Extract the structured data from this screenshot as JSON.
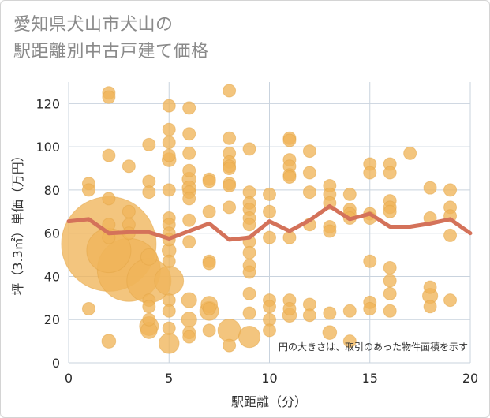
{
  "title": {
    "line1": "愛知県犬山市犬山の",
    "line2": "駅距離別中古戸建て価格"
  },
  "colors": {
    "bubble": "#f0b55a",
    "bubble_stroke": "#e3a645",
    "line": "#d4725a",
    "grid": "#c9d3de",
    "plot_bg": "#ffffff"
  },
  "chart_data": {
    "type": "scatter",
    "xlabel": "駅距離（分）",
    "ylabel": "坪（3.3㎡）単価（万円）",
    "xlim": [
      0,
      20
    ],
    "ylim": [
      0,
      130
    ],
    "x_ticks": [
      0,
      5,
      10,
      15,
      20
    ],
    "y_ticks": [
      0,
      20,
      40,
      60,
      80,
      100,
      120
    ],
    "annotation": "円の大きさは、取引のあった物件面積を示す",
    "bubbles": [
      {
        "x": 1,
        "y": 83,
        "s": 1
      },
      {
        "x": 1,
        "y": 80,
        "s": 1
      },
      {
        "x": 1,
        "y": 25,
        "s": 1
      },
      {
        "x": 2,
        "y": 125,
        "s": 1
      },
      {
        "x": 2,
        "y": 123,
        "s": 1
      },
      {
        "x": 2,
        "y": 96,
        "s": 1
      },
      {
        "x": 2,
        "y": 76,
        "s": 1
      },
      {
        "x": 2,
        "y": 64,
        "s": 1
      },
      {
        "x": 2,
        "y": 58,
        "s": 1
      },
      {
        "x": 2,
        "y": 55,
        "s": 7.5
      },
      {
        "x": 2,
        "y": 52,
        "s": 3.5
      },
      {
        "x": 2,
        "y": 10,
        "s": 1.1
      },
      {
        "x": 3,
        "y": 91,
        "s": 1
      },
      {
        "x": 3,
        "y": 70,
        "s": 1
      },
      {
        "x": 3,
        "y": 64,
        "s": 1
      },
      {
        "x": 3,
        "y": 60,
        "s": 1
      },
      {
        "x": 3,
        "y": 43,
        "s": 5
      },
      {
        "x": 4,
        "y": 101,
        "s": 1
      },
      {
        "x": 4,
        "y": 84,
        "s": 1
      },
      {
        "x": 4,
        "y": 79,
        "s": 1
      },
      {
        "x": 4,
        "y": 49,
        "s": 1.3
      },
      {
        "x": 4,
        "y": 38,
        "s": 3.5
      },
      {
        "x": 4,
        "y": 29,
        "s": 1
      },
      {
        "x": 4,
        "y": 26,
        "s": 1
      },
      {
        "x": 4,
        "y": 20,
        "s": 1
      },
      {
        "x": 4,
        "y": 17,
        "s": 1.5
      },
      {
        "x": 4,
        "y": 15,
        "s": 1.3
      },
      {
        "x": 5,
        "y": 119,
        "s": 1
      },
      {
        "x": 5,
        "y": 108,
        "s": 1
      },
      {
        "x": 5,
        "y": 102,
        "s": 1
      },
      {
        "x": 5,
        "y": 96,
        "s": 1
      },
      {
        "x": 5,
        "y": 94,
        "s": 1.1
      },
      {
        "x": 5,
        "y": 80,
        "s": 1
      },
      {
        "x": 5,
        "y": 67,
        "s": 1
      },
      {
        "x": 5,
        "y": 64,
        "s": 1
      },
      {
        "x": 5,
        "y": 60,
        "s": 1
      },
      {
        "x": 5,
        "y": 57,
        "s": 1
      },
      {
        "x": 5,
        "y": 52,
        "s": 1.1
      },
      {
        "x": 5,
        "y": 47,
        "s": 1
      },
      {
        "x": 5,
        "y": 38,
        "s": 2.3
      },
      {
        "x": 5,
        "y": 29,
        "s": 1
      },
      {
        "x": 5,
        "y": 24,
        "s": 1
      },
      {
        "x": 5,
        "y": 16,
        "s": 1
      },
      {
        "x": 5,
        "y": 9,
        "s": 1.6
      },
      {
        "x": 6,
        "y": 118,
        "s": 1
      },
      {
        "x": 6,
        "y": 106,
        "s": 1
      },
      {
        "x": 6,
        "y": 97,
        "s": 1
      },
      {
        "x": 6,
        "y": 89,
        "s": 1
      },
      {
        "x": 6,
        "y": 85,
        "s": 1.1
      },
      {
        "x": 6,
        "y": 81,
        "s": 1.1
      },
      {
        "x": 6,
        "y": 79,
        "s": 1
      },
      {
        "x": 6,
        "y": 76,
        "s": 1
      },
      {
        "x": 6,
        "y": 66,
        "s": 1
      },
      {
        "x": 6,
        "y": 56,
        "s": 1
      },
      {
        "x": 6,
        "y": 29,
        "s": 1.2
      },
      {
        "x": 6,
        "y": 20,
        "s": 1.2
      },
      {
        "x": 6,
        "y": 14,
        "s": 1
      },
      {
        "x": 6,
        "y": 12,
        "s": 1
      },
      {
        "x": 7,
        "y": 85,
        "s": 1
      },
      {
        "x": 7,
        "y": 84,
        "s": 1
      },
      {
        "x": 7,
        "y": 70,
        "s": 1
      },
      {
        "x": 7,
        "y": 47,
        "s": 1
      },
      {
        "x": 7,
        "y": 46,
        "s": 1
      },
      {
        "x": 7,
        "y": 27,
        "s": 1.3
      },
      {
        "x": 7,
        "y": 25,
        "s": 1
      },
      {
        "x": 7,
        "y": 24,
        "s": 1.5
      },
      {
        "x": 7,
        "y": 15,
        "s": 1
      },
      {
        "x": 8,
        "y": 126,
        "s": 1
      },
      {
        "x": 8,
        "y": 104,
        "s": 1
      },
      {
        "x": 8,
        "y": 97,
        "s": 1
      },
      {
        "x": 8,
        "y": 93,
        "s": 1
      },
      {
        "x": 8,
        "y": 91,
        "s": 1
      },
      {
        "x": 8,
        "y": 90,
        "s": 1
      },
      {
        "x": 8,
        "y": 83,
        "s": 1
      },
      {
        "x": 8,
        "y": 82,
        "s": 1
      },
      {
        "x": 8,
        "y": 72,
        "s": 1
      },
      {
        "x": 8,
        "y": 15,
        "s": 1.8
      },
      {
        "x": 8,
        "y": 8,
        "s": 1
      },
      {
        "x": 9,
        "y": 99,
        "s": 1
      },
      {
        "x": 9,
        "y": 79,
        "s": 1
      },
      {
        "x": 9,
        "y": 74,
        "s": 1
      },
      {
        "x": 9,
        "y": 71,
        "s": 1
      },
      {
        "x": 9,
        "y": 67,
        "s": 1
      },
      {
        "x": 9,
        "y": 64,
        "s": 1
      },
      {
        "x": 9,
        "y": 56,
        "s": 1
      },
      {
        "x": 9,
        "y": 51,
        "s": 1
      },
      {
        "x": 9,
        "y": 45,
        "s": 1
      },
      {
        "x": 9,
        "y": 42,
        "s": 1
      },
      {
        "x": 9,
        "y": 32,
        "s": 1
      },
      {
        "x": 9,
        "y": 23,
        "s": 1
      },
      {
        "x": 9,
        "y": 12,
        "s": 1.7
      },
      {
        "x": 10,
        "y": 78,
        "s": 1
      },
      {
        "x": 10,
        "y": 70,
        "s": 1
      },
      {
        "x": 10,
        "y": 58,
        "s": 1
      },
      {
        "x": 10,
        "y": 29,
        "s": 1
      },
      {
        "x": 10,
        "y": 26,
        "s": 1
      },
      {
        "x": 10,
        "y": 20,
        "s": 1
      },
      {
        "x": 10,
        "y": 15,
        "s": 1
      },
      {
        "x": 11,
        "y": 104,
        "s": 1
      },
      {
        "x": 11,
        "y": 103,
        "s": 1
      },
      {
        "x": 11,
        "y": 94,
        "s": 1
      },
      {
        "x": 11,
        "y": 91,
        "s": 1
      },
      {
        "x": 11,
        "y": 87,
        "s": 1
      },
      {
        "x": 11,
        "y": 86,
        "s": 1
      },
      {
        "x": 11,
        "y": 58,
        "s": 1
      },
      {
        "x": 11,
        "y": 29,
        "s": 1
      },
      {
        "x": 11,
        "y": 25,
        "s": 1
      },
      {
        "x": 11,
        "y": 22,
        "s": 1.1
      },
      {
        "x": 12,
        "y": 98,
        "s": 1
      },
      {
        "x": 12,
        "y": 88,
        "s": 1
      },
      {
        "x": 12,
        "y": 79,
        "s": 1
      },
      {
        "x": 12,
        "y": 64,
        "s": 1
      },
      {
        "x": 12,
        "y": 27,
        "s": 1
      },
      {
        "x": 12,
        "y": 22,
        "s": 1
      },
      {
        "x": 13,
        "y": 82,
        "s": 1
      },
      {
        "x": 13,
        "y": 78,
        "s": 1
      },
      {
        "x": 13,
        "y": 74,
        "s": 1
      },
      {
        "x": 13,
        "y": 63,
        "s": 1
      },
      {
        "x": 13,
        "y": 61,
        "s": 1
      },
      {
        "x": 13,
        "y": 23,
        "s": 1
      },
      {
        "x": 13,
        "y": 14,
        "s": 1.1
      },
      {
        "x": 14,
        "y": 78,
        "s": 1
      },
      {
        "x": 14,
        "y": 71,
        "s": 1
      },
      {
        "x": 14,
        "y": 69,
        "s": 1
      },
      {
        "x": 14,
        "y": 67,
        "s": 1
      },
      {
        "x": 14,
        "y": 24,
        "s": 1
      },
      {
        "x": 14,
        "y": 10,
        "s": 1
      },
      {
        "x": 15,
        "y": 92,
        "s": 1
      },
      {
        "x": 15,
        "y": 88,
        "s": 1
      },
      {
        "x": 15,
        "y": 69,
        "s": 1
      },
      {
        "x": 15,
        "y": 67,
        "s": 1
      },
      {
        "x": 15,
        "y": 47,
        "s": 1
      },
      {
        "x": 15,
        "y": 28,
        "s": 1
      },
      {
        "x": 15,
        "y": 25,
        "s": 1
      },
      {
        "x": 16,
        "y": 92,
        "s": 1
      },
      {
        "x": 16,
        "y": 88,
        "s": 1
      },
      {
        "x": 16,
        "y": 75,
        "s": 1
      },
      {
        "x": 16,
        "y": 72,
        "s": 1
      },
      {
        "x": 16,
        "y": 70,
        "s": 1
      },
      {
        "x": 16,
        "y": 44,
        "s": 1
      },
      {
        "x": 16,
        "y": 38,
        "s": 1
      },
      {
        "x": 16,
        "y": 32,
        "s": 1
      },
      {
        "x": 16,
        "y": 24,
        "s": 1
      },
      {
        "x": 17,
        "y": 97,
        "s": 1
      },
      {
        "x": 18,
        "y": 81,
        "s": 1
      },
      {
        "x": 18,
        "y": 67,
        "s": 1
      },
      {
        "x": 18,
        "y": 35,
        "s": 1
      },
      {
        "x": 18,
        "y": 31,
        "s": 1.2
      },
      {
        "x": 18,
        "y": 26,
        "s": 1
      },
      {
        "x": 19,
        "y": 80,
        "s": 1
      },
      {
        "x": 19,
        "y": 72,
        "s": 1
      },
      {
        "x": 19,
        "y": 68,
        "s": 1
      },
      {
        "x": 19,
        "y": 59,
        "s": 1
      },
      {
        "x": 19,
        "y": 29,
        "s": 1
      }
    ],
    "average_line": {
      "x": [
        0,
        1,
        2,
        3,
        4,
        5,
        6,
        7,
        8,
        9,
        10,
        11,
        12,
        13,
        14,
        15,
        16,
        17,
        18,
        19,
        20
      ],
      "y": [
        65.5,
        66.5,
        60,
        60.5,
        60.5,
        57.5,
        61,
        64.5,
        57,
        58,
        65.5,
        61,
        66,
        72.5,
        66.5,
        69,
        63,
        63,
        64.5,
        66.5,
        60
      ]
    }
  }
}
